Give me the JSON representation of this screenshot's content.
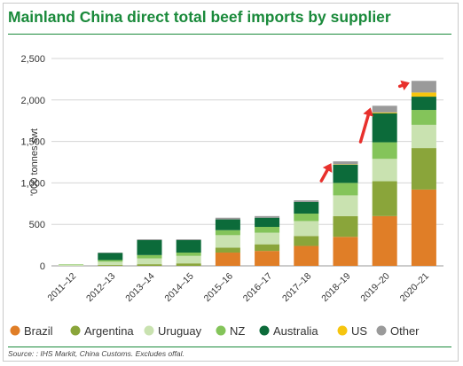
{
  "title": "Mainland China direct total beef imports by supplier",
  "source": "Source: : IHS Markit, China Customs. Excludes offal.",
  "chart_data": {
    "type": "bar",
    "stacked": true,
    "ylabel": "'000 tonnes swt",
    "xlabel": "",
    "ylim": [
      0,
      2500
    ],
    "yticks": [
      0,
      500,
      1000,
      1500,
      2000,
      2500
    ],
    "ytick_labels": [
      "0",
      "500",
      "1,000",
      "1,500",
      "2,000",
      "2,500"
    ],
    "grid": true,
    "legend_position": "bottom",
    "categories": [
      "2011–12",
      "2012–13",
      "2013–14",
      "2014–15",
      "2015–16",
      "2016–17",
      "2017–18",
      "2018–19",
      "2019–20",
      "2020–21"
    ],
    "series": [
      {
        "name": "Brazil",
        "color": "#e07e27",
        "values": [
          0,
          0,
          0,
          0,
          160,
          180,
          240,
          350,
          600,
          920
        ]
      },
      {
        "name": "Argentina",
        "color": "#8aa53a",
        "values": [
          0,
          10,
          20,
          30,
          60,
          80,
          120,
          250,
          420,
          500
        ]
      },
      {
        "name": "Uruguay",
        "color": "#c9e2b0",
        "values": [
          15,
          40,
          70,
          90,
          150,
          140,
          180,
          250,
          270,
          280
        ]
      },
      {
        "name": "NZ",
        "color": "#84c45a",
        "values": [
          5,
          20,
          40,
          40,
          60,
          70,
          90,
          150,
          200,
          180
        ]
      },
      {
        "name": "Australia",
        "color": "#0c6b3a",
        "values": [
          0,
          85,
          180,
          150,
          130,
          110,
          140,
          220,
          350,
          160
        ]
      },
      {
        "name": "US",
        "color": "#f6c50f",
        "values": [
          0,
          0,
          0,
          0,
          0,
          0,
          0,
          5,
          10,
          50
        ]
      },
      {
        "name": "Other",
        "color": "#9a9a9a",
        "values": [
          0,
          5,
          10,
          10,
          20,
          20,
          20,
          35,
          80,
          140
        ]
      }
    ],
    "growth_arrows": {
      "color": "#e8302c",
      "spans": [
        [
          "2017–18",
          "2018–19"
        ],
        [
          "2018–19",
          "2019–20"
        ],
        [
          "2019–20",
          "2020–21"
        ]
      ]
    }
  }
}
